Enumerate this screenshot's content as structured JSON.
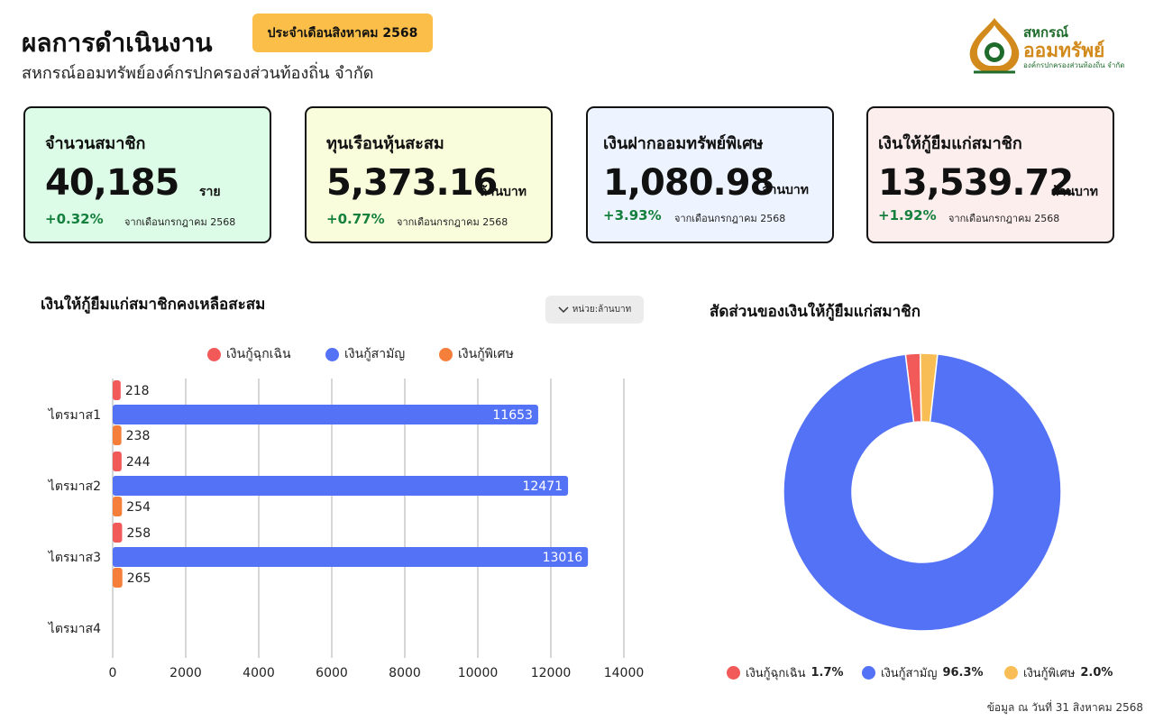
{
  "header": {
    "title": "ผลการดำเนินงาน",
    "badge": "ประจำเดือนสิงหาคม 2568",
    "subtitle": "สหกรณ์ออมทรัพย์องค์กรปกครองส่วนท้องถิ่น จำกัด"
  },
  "logo": {
    "line1": "สหกรณ์",
    "line2": "ออมทรัพย์",
    "line3": "องค์กรปกครองส่วนท้องถิ่น จำกัด"
  },
  "cards": [
    {
      "title": "จำนวนสมาชิก",
      "value": "40,185",
      "unit": "ราย",
      "change": "+0.32%",
      "note": "จากเดือนกรกฎาคม 2568",
      "bg": "#dcfce7"
    },
    {
      "title": "ทุนเรือนหุ้นสะสม",
      "value": "5,373.16",
      "unit": "ล้านบาท",
      "change": "+0.77%",
      "note": "จากเดือนกรกฎาคม 2568",
      "bg": "#fafddc"
    },
    {
      "title": "เงินฝากออมทรัพย์พิเศษ",
      "value": "1,080.98",
      "unit": "ล้านบาท",
      "change": "+3.93%",
      "note": "จากเดือนกรกฎาคม 2568",
      "bg": "#eef4ff"
    },
    {
      "title": "เงินให้กู้ยืมแก่สมาชิก",
      "value": "13,539.72",
      "unit": "ล้านบาท",
      "change": "+1.92%",
      "note": "จากเดือนกรกฎาคม 2568",
      "bg": "#fdeeee"
    }
  ],
  "bar_section": {
    "title": "เงินให้กู้ยืมแก่สมาชิกคงเหลือสะสม",
    "unit_button": "หน่วย:ล้านบาท"
  },
  "pie_section": {
    "title": "สัดส่วนของเงินให้กู้ยืมแก่สมาชิก"
  },
  "colors": {
    "emergency": "#f25a5a",
    "regular": "#5472f5",
    "special_bar": "#f57f3a",
    "special_pie": "#f9bd55"
  },
  "chart_data": [
    {
      "type": "bar",
      "orientation": "horizontal",
      "categories": [
        "ไตรมาส1",
        "ไตรมาส2",
        "ไตรมาส3",
        "ไตรมาส4"
      ],
      "series": [
        {
          "name": "เงินกู้ฉุกเฉิน",
          "values": [
            218,
            244,
            258,
            null
          ]
        },
        {
          "name": "เงินกู้สามัญ",
          "values": [
            11653,
            12471,
            13016,
            null
          ]
        },
        {
          "name": "เงินกู้พิเศษ",
          "values": [
            238,
            254,
            265,
            null
          ]
        }
      ],
      "xticks": [
        "0",
        "2000",
        "4000",
        "6000",
        "8000",
        "10000",
        "12000",
        "14000"
      ],
      "xlim": [
        0,
        14000
      ],
      "grid": true,
      "legend": "top"
    },
    {
      "type": "pie",
      "variant": "donut",
      "slices": [
        {
          "name": "เงินกู้ฉุกเฉิน",
          "value": 1.7,
          "label": "1.7%"
        },
        {
          "name": "เงินกู้สามัญ",
          "value": 96.3,
          "label": "96.3%"
        },
        {
          "name": "เงินกู้พิเศษ",
          "value": 2.0,
          "label": "2.0%"
        }
      ],
      "legend": "bottom"
    }
  ],
  "footer": "ข้อมูล ณ วันที่ 31 สิงหาคม 2568"
}
